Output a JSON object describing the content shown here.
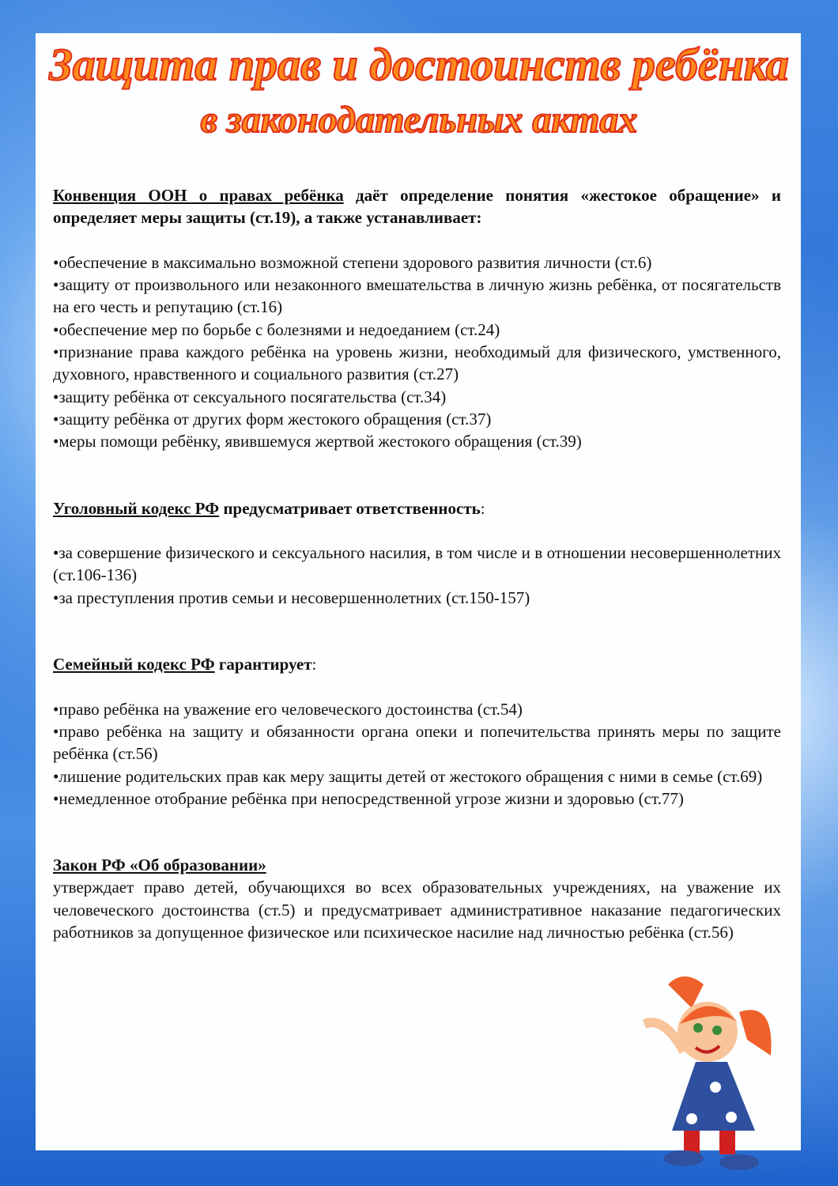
{
  "title": {
    "line1": "Защита прав и достоинств ребёнка",
    "line2": "в законодательных актах"
  },
  "sections": [
    {
      "heading": "Конвенция ООН о правах ребёнка",
      "intro": " даёт определение понятия «жестокое обращение» и определяет меры защиты (ст.19), а также устанавливает:",
      "tail": "",
      "items": [
        "•обеспечение в максимально возможной степени здорового развития личности (ст.6)",
        "•защиту от произвольного или незаконного вмешательства в личную жизнь ребёнка, от посягательств на его честь и репутацию (ст.16)",
        "•обеспечение мер по борьбе с болезнями и недоеданием (ст.24)",
        "•признание права каждого ребёнка на уровень жизни, необходимый для физического, умственного, духовного, нравственного и социального развития (ст.27)",
        "•защиту ребёнка от сексуального посягательства (ст.34)",
        "•защиту ребёнка от других форм жестокого обращения (ст.37)",
        "•меры помощи ребёнку, явившемуся жертвой жестокого обращения (ст.39)"
      ]
    },
    {
      "heading": "Уголовный кодекс РФ",
      "intro": " предусматривает ответственность",
      "tail": ":",
      "items": [
        "•за совершение физического и сексуального насилия, в том числе и в отношении несовершеннолетних (ст.106-136)",
        "•за преступления против семьи и несовершеннолетних (ст.150-157)"
      ]
    },
    {
      "heading": "Семейный кодекс РФ",
      "intro": " гарантирует",
      "tail": ":",
      "items": [
        "•право ребёнка на уважение его человеческого достоинства (ст.54)",
        "•право ребёнка на защиту и обязанности органа опеки и попечительства принять меры по защите ребёнка (ст.56)",
        "•лишение родительских прав как меру защиты детей от жестокого обращения с ними в семье (ст.69)",
        "•немедленное отобрание ребёнка при непосредственной угрозе жизни и здоровью (ст.77)"
      ]
    },
    {
      "heading": "Закон РФ «Об образовании»",
      "body": "утверждает право детей, обучающихся во всех образовательных учреждениях, на уважение их человеческого достоинства (ст.5) и предусматривает административное наказание педагогических работников за допущенное физическое или психическое насилие над личностью ребёнка (ст.56)"
    }
  ]
}
